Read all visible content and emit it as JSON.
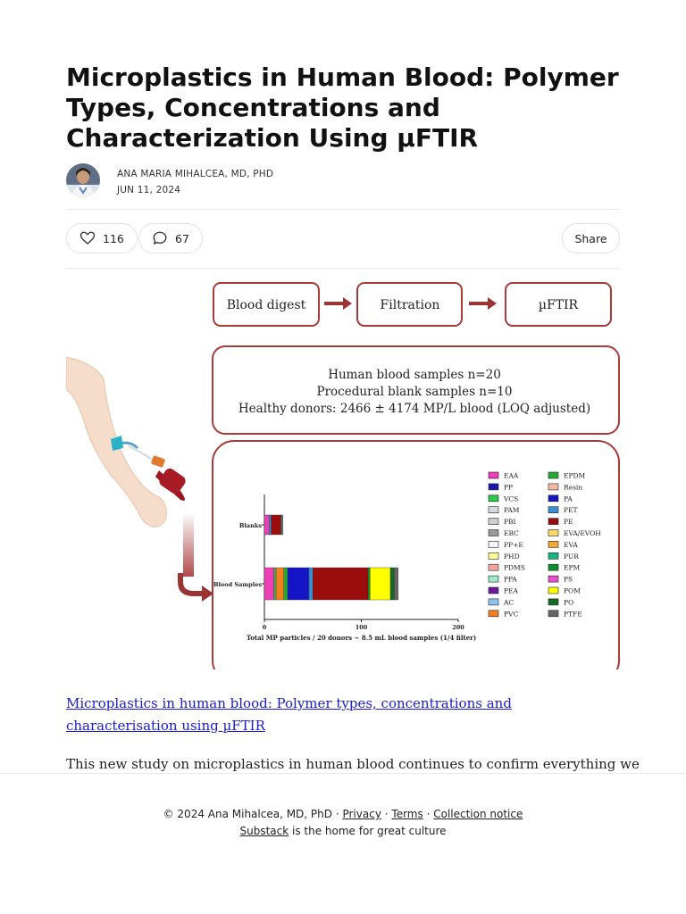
{
  "post": {
    "title": "Microplastics in Human Blood: Polymer Types, Concentrations and Characterization Using µFTIR",
    "author": "ANA MARIA MIHALCEA, MD, PHD",
    "date": "JUN 11, 2024"
  },
  "actions": {
    "like_count": "116",
    "comment_count": "67",
    "share_label": "Share"
  },
  "figure": {
    "steps": [
      "Blood digest",
      "Filtration",
      "µFTIR"
    ],
    "summary": [
      "Human blood samples n=20",
      "Procedural blank samples n=10",
      "Healthy donors: 2466 ± 4174 MP/L blood (LOQ adjusted)"
    ],
    "colors": {
      "box_border": "#a83a3a",
      "arrow": "#9b3535"
    }
  },
  "chart_data": {
    "type": "bar",
    "orientation": "horizontal",
    "stacked": true,
    "categories": [
      "Blanks",
      "Blood Samples"
    ],
    "xlabel": "Total MP particles / 20 donors ~ 8.5 mL blood samples (1/4 filter)",
    "xlim": [
      0,
      200
    ],
    "xticks": [
      0,
      100,
      200
    ],
    "legend_position": "right",
    "series": [
      {
        "name": "EAA",
        "color": "#ee3fb6",
        "values": [
          5,
          10
        ]
      },
      {
        "name": "PP",
        "color": "#1a1aa8",
        "values": [
          0,
          0
        ]
      },
      {
        "name": "VCS",
        "color": "#2cc94a",
        "values": [
          0,
          2
        ]
      },
      {
        "name": "PAM",
        "color": "#d9d9d9",
        "values": [
          0,
          0
        ]
      },
      {
        "name": "PBI",
        "color": "#cfcfcf",
        "values": [
          0,
          0
        ]
      },
      {
        "name": "EBC",
        "color": "#9a9a9a",
        "values": [
          0,
          0
        ]
      },
      {
        "name": "PP+E",
        "color": "#f5f5f5",
        "values": [
          0,
          0
        ]
      },
      {
        "name": "PHD",
        "color": "#ffff99",
        "values": [
          0,
          0
        ]
      },
      {
        "name": "PDMS",
        "color": "#f7a3a3",
        "values": [
          0,
          0
        ]
      },
      {
        "name": "PPA",
        "color": "#9fe8c8",
        "values": [
          0,
          0
        ]
      },
      {
        "name": "PEA",
        "color": "#6a1a9a",
        "values": [
          0,
          0
        ]
      },
      {
        "name": "AC",
        "color": "#8ec3f0",
        "values": [
          0,
          0
        ]
      },
      {
        "name": "PVC",
        "color": "#f0801e",
        "values": [
          0,
          8
        ]
      },
      {
        "name": "EPDM",
        "color": "#22aa33",
        "values": [
          0,
          4
        ]
      },
      {
        "name": "Resin",
        "color": "#f5b9a5",
        "values": [
          0,
          0
        ]
      },
      {
        "name": "PA",
        "color": "#1515c8",
        "values": [
          0,
          22
        ]
      },
      {
        "name": "PET",
        "color": "#3a8fd0",
        "values": [
          2,
          4
        ]
      },
      {
        "name": "PE",
        "color": "#9b0c0c",
        "values": [
          10,
          57
        ]
      },
      {
        "name": "EVA/EVOH",
        "color": "#ffd966",
        "values": [
          0,
          0
        ]
      },
      {
        "name": "EVA",
        "color": "#f4a636",
        "values": [
          0,
          0
        ]
      },
      {
        "name": "PUR",
        "color": "#19b486",
        "values": [
          0,
          0
        ]
      },
      {
        "name": "EPM",
        "color": "#0b8f2a",
        "values": [
          0,
          2
        ]
      },
      {
        "name": "PS",
        "color": "#e84ed0",
        "values": [
          0,
          0
        ]
      },
      {
        "name": "POM",
        "color": "#ffff00",
        "values": [
          0,
          21
        ]
      },
      {
        "name": "PO",
        "color": "#126b1e",
        "values": [
          0,
          4
        ]
      },
      {
        "name": "PTFE",
        "color": "#666666",
        "values": [
          2,
          4
        ]
      }
    ]
  },
  "article": {
    "link_text": "Microplastics in human blood: Polymer types, concentrations and characterisation using µFTIR",
    "intro": "This new study on microplastics in human blood continues to confirm everything we"
  },
  "footer": {
    "copyright": "© 2024 Ana Mihalcea, MD, PhD ·",
    "privacy": "Privacy",
    "sep1": "·",
    "terms": "Terms",
    "sep2": "·",
    "collection": "Collection notice",
    "substack": "Substack",
    "tagline": "is the home for great culture"
  }
}
